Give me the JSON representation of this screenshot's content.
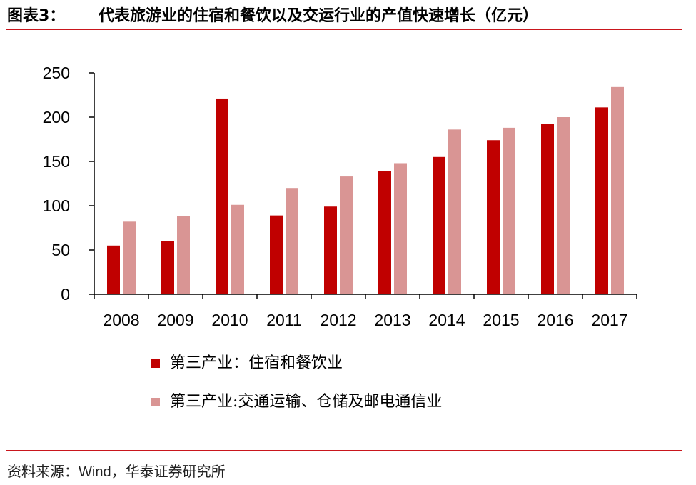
{
  "figure": {
    "label": "图表3：",
    "title": "代表旅游业的住宿和餐饮以及交运行业的产值快速增长（亿元）"
  },
  "source": {
    "prefix": "资料来源：",
    "text": "Wind，华泰证券研究所"
  },
  "colors": {
    "accent": "#c9161d",
    "series1": "#c00000",
    "series2": "#d99594"
  },
  "chart_data": {
    "type": "bar",
    "categories": [
      "2008",
      "2009",
      "2010",
      "2011",
      "2012",
      "2013",
      "2014",
      "2015",
      "2016",
      "2017"
    ],
    "series": [
      {
        "name": "第三产业：住宿和餐饮业",
        "values": [
          55,
          60,
          221,
          89,
          99,
          139,
          155,
          174,
          192,
          211
        ]
      },
      {
        "name": "第三产业:交通运输、仓储及邮电通信业",
        "values": [
          82,
          88,
          101,
          120,
          133,
          148,
          186,
          188,
          200,
          234
        ]
      }
    ],
    "ylim": [
      0,
      250
    ],
    "yticks": [
      0,
      50,
      100,
      150,
      200,
      250
    ],
    "xlabel": "",
    "ylabel": "",
    "grid": false,
    "legend": "bottom"
  }
}
